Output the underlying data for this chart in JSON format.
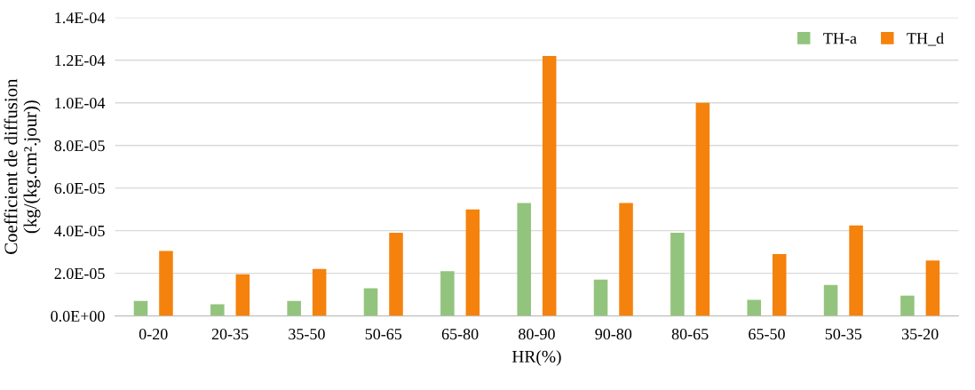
{
  "chart_data": {
    "type": "bar",
    "xlabel": "HR(%)",
    "ylabel": "Coefficient de diffusion\n(kg/(kg.cm².jour))",
    "categories": [
      "0-20",
      "20-35",
      "35-50",
      "50-65",
      "65-80",
      "80-90",
      "90-80",
      "80-65",
      "65-50",
      "50-35",
      "35-20"
    ],
    "series": [
      {
        "name": "TH-a",
        "color": "#93c47d",
        "values": [
          7e-06,
          5.5e-06,
          7e-06,
          1.3e-05,
          2.1e-05,
          5.3e-05,
          1.7e-05,
          3.9e-05,
          7.5e-06,
          1.45e-05,
          9.5e-06
        ]
      },
      {
        "name": "TH_d",
        "color": "#f4820c",
        "values": [
          3.05e-05,
          1.95e-05,
          2.2e-05,
          3.9e-05,
          5e-05,
          0.000122,
          5.3e-05,
          0.0001,
          2.9e-05,
          4.25e-05,
          2.6e-05
        ]
      }
    ],
    "ylim": [
      0,
      0.00014
    ],
    "yticks": [
      {
        "value": 0,
        "label": "0.0E+00"
      },
      {
        "value": 2e-05,
        "label": "2.0E-05"
      },
      {
        "value": 4e-05,
        "label": "4.0E-05"
      },
      {
        "value": 6e-05,
        "label": "6.0E-05"
      },
      {
        "value": 8e-05,
        "label": "8.0E-05"
      },
      {
        "value": 0.0001,
        "label": "1.0E-04"
      },
      {
        "value": 0.00012,
        "label": "1.2E-04"
      },
      {
        "value": 0.00014,
        "label": "1.4E-04"
      }
    ],
    "grid": "y",
    "legend": "top right"
  }
}
